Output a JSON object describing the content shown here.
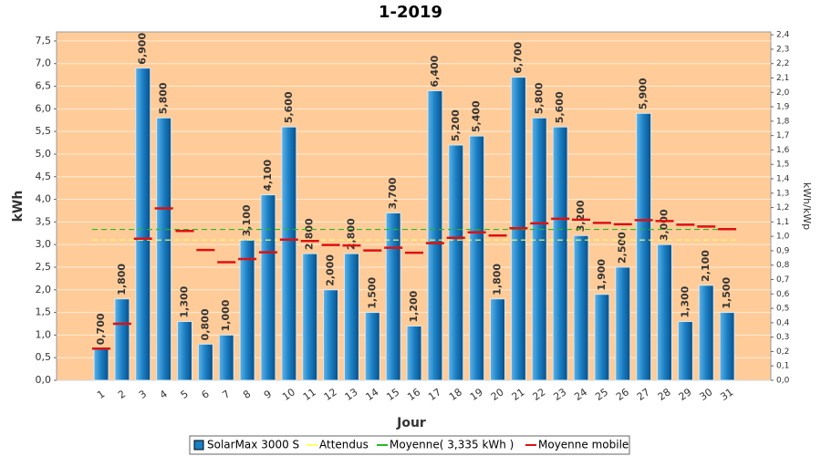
{
  "chart_data": {
    "type": "bar",
    "title": "1-2019",
    "xlabel": "Jour",
    "ylabel": "kWh",
    "y2label": "kWh/kWp",
    "categories": [
      "1",
      "2",
      "3",
      "4",
      "5",
      "6",
      "7",
      "8",
      "9",
      "10",
      "11",
      "12",
      "13",
      "14",
      "15",
      "16",
      "17",
      "18",
      "19",
      "20",
      "21",
      "22",
      "23",
      "24",
      "25",
      "26",
      "27",
      "28",
      "29",
      "30",
      "31"
    ],
    "series": [
      {
        "name": "SolarMax 3000 S",
        "color": "#1a7fc4",
        "values": [
          0.7,
          1.8,
          6.9,
          5.8,
          1.3,
          0.8,
          1.0,
          3.1,
          4.1,
          5.6,
          2.8,
          2.0,
          2.8,
          1.5,
          3.7,
          1.2,
          6.4,
          5.2,
          5.4,
          1.8,
          6.7,
          5.8,
          5.6,
          3.2,
          1.9,
          2.5,
          5.9,
          3.0,
          1.3,
          2.1,
          1.5
        ],
        "value_labels": [
          "0,700",
          "1,800",
          "6,900",
          "5,800",
          "1,300",
          "0,800",
          "1,000",
          "3,100",
          "4,100",
          "5,600",
          "2,800",
          "2,000",
          "2,800",
          "1,500",
          "3,700",
          "1,200",
          "6,400",
          "5,200",
          "5,400",
          "1,800",
          "6,700",
          "5,800",
          "5,600",
          "3,200",
          "1,900",
          "2,500",
          "5,900",
          "3,000",
          "1,300",
          "2,100",
          "1,500"
        ]
      },
      {
        "name": "Attendus",
        "color": "#ffff66",
        "value": 3.1
      },
      {
        "name": "Moyenne( 3,335 kWh )",
        "color": "#22bb22",
        "value": 3.335
      },
      {
        "name": "Moyenne mobile",
        "color": "#dd1111",
        "values": [
          0.7,
          1.25,
          3.13,
          3.8,
          3.3,
          2.88,
          2.61,
          2.68,
          2.83,
          3.11,
          3.08,
          2.99,
          2.98,
          2.87,
          2.93,
          2.82,
          3.03,
          3.15,
          3.27,
          3.2,
          3.36,
          3.47,
          3.57,
          3.55,
          3.48,
          3.45,
          3.54,
          3.52,
          3.44,
          3.4,
          3.34
        ]
      }
    ],
    "ylim": [
      0,
      7.7
    ],
    "yticks": [
      {
        "value": 0,
        "label": "0,0"
      },
      {
        "value": 0.5,
        "label": "0,5"
      },
      {
        "value": 1,
        "label": "1,0"
      },
      {
        "value": 1.5,
        "label": "1,5"
      },
      {
        "value": 2,
        "label": "2,0"
      },
      {
        "value": 2.5,
        "label": "2,5"
      },
      {
        "value": 3,
        "label": "3,0"
      },
      {
        "value": 3.5,
        "label": "3,5"
      },
      {
        "value": 4,
        "label": "4,0"
      },
      {
        "value": 4.5,
        "label": "4,5"
      },
      {
        "value": 5,
        "label": "5,0"
      },
      {
        "value": 5.5,
        "label": "5,5"
      },
      {
        "value": 6,
        "label": "6,0"
      },
      {
        "value": 6.5,
        "label": "6,5"
      },
      {
        "value": 7,
        "label": "7,0"
      },
      {
        "value": 7.5,
        "label": "7,5"
      }
    ],
    "y2lim": [
      0,
      2.42
    ],
    "y2ticks": [
      {
        "value": 0,
        "label": "0,0"
      },
      {
        "value": 0.1,
        "label": "0,1"
      },
      {
        "value": 0.2,
        "label": "0,2"
      },
      {
        "value": 0.3,
        "label": "0,3"
      },
      {
        "value": 0.4,
        "label": "0,4"
      },
      {
        "value": 0.5,
        "label": "0,5"
      },
      {
        "value": 0.6,
        "label": "0,6"
      },
      {
        "value": 0.7,
        "label": "0,7"
      },
      {
        "value": 0.8,
        "label": "0,8"
      },
      {
        "value": 0.9,
        "label": "0,9"
      },
      {
        "value": 1,
        "label": "1,0"
      },
      {
        "value": 1.1,
        "label": "1,1"
      },
      {
        "value": 1.2,
        "label": "1,2"
      },
      {
        "value": 1.3,
        "label": "1,3"
      },
      {
        "value": 1.4,
        "label": "1,4"
      },
      {
        "value": 1.5,
        "label": "1,5"
      },
      {
        "value": 1.6,
        "label": "1,6"
      },
      {
        "value": 1.7,
        "label": "1,7"
      },
      {
        "value": 1.8,
        "label": "1,8"
      },
      {
        "value": 1.9,
        "label": "1,9"
      },
      {
        "value": 2,
        "label": "2,0"
      },
      {
        "value": 2.1,
        "label": "2,1"
      },
      {
        "value": 2.2,
        "label": "2,2"
      },
      {
        "value": 2.3,
        "label": "2,3"
      },
      {
        "value": 2.4,
        "label": "2,4"
      }
    ],
    "grid": true,
    "legend": "bottom",
    "background": "#ffcc99"
  }
}
